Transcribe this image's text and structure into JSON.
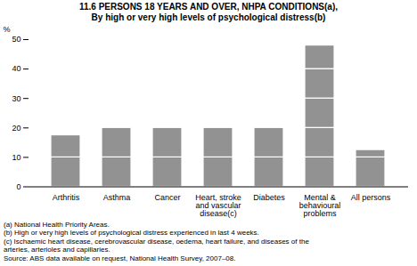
{
  "chart_data": {
    "type": "bar",
    "stacked": true,
    "title": "11.6   PERSONS 18 YEARS AND OVER, NHPA CONDITIONS(a),",
    "subtitle": "By high or very high levels of psychological distress(b)",
    "categories": [
      "Arthritis",
      "Asthma",
      "Cancer",
      "Heart, stroke\nand vascular\ndisease(c)",
      "Diabetes",
      "Mental &\nbehavioural\nproblems",
      "All persons"
    ],
    "color": "#929292",
    "series": [
      {
        "values": [
          10.0,
          10.0,
          10.0,
          10.0,
          10.0,
          10.0,
          10.0
        ]
      },
      {
        "values": [
          7.5,
          10.0,
          10.0,
          10.0,
          10.0,
          10.0,
          2.5
        ]
      },
      {
        "values": [
          0,
          0,
          0,
          0,
          0,
          10.0,
          0
        ]
      },
      {
        "values": [
          0,
          0,
          0,
          0,
          0,
          10.0,
          0
        ]
      },
      {
        "values": [
          0,
          0,
          0,
          0,
          0,
          8.0,
          0
        ]
      }
    ],
    "ylabel": "%",
    "ylim": [
      0,
      50
    ],
    "yticks": [
      0,
      10,
      20,
      30,
      40,
      50
    ],
    "grid": false,
    "annotations": [
      "(a) National Health Priority Areas.",
      "(b) High or very high levels of psychological distress experienced in last 4 weeks.",
      "(c) Ischaemic heart disease, cerebrovascular disease, oedema, heart failure, and diseases of the\narteries, arterioles and capillaries.",
      "Source: ABS data available on request, National Health Survey, 2007–08."
    ]
  }
}
